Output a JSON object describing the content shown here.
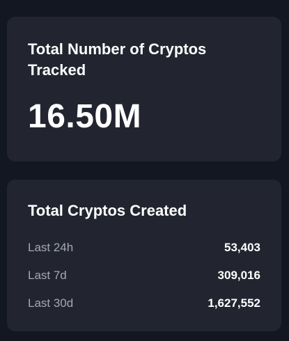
{
  "total_tracked": {
    "title": "Total Number of Cryptos Tracked",
    "value": "16.50M"
  },
  "created": {
    "title": "Total Cryptos Created",
    "rows": [
      {
        "label": "Last 24h",
        "value": "53,403"
      },
      {
        "label": "Last 7d",
        "value": "309,016"
      },
      {
        "label": "Last 30d",
        "value": "1,627,552"
      }
    ]
  },
  "colors": {
    "background": "#131722",
    "card": "#222530",
    "text_primary": "#ffffff",
    "text_secondary": "#a4a8b5"
  }
}
